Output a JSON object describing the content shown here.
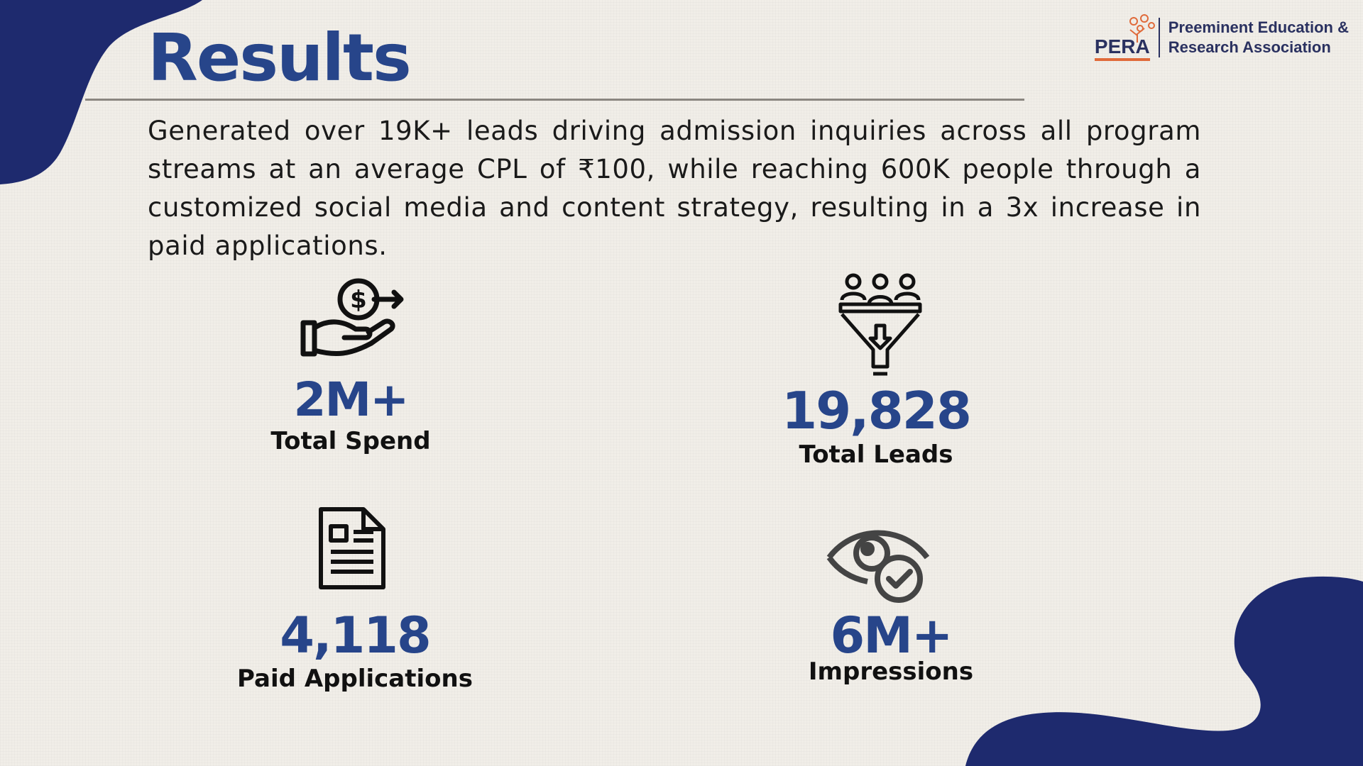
{
  "header": {
    "title": "Results",
    "logo": {
      "mark": "PERA",
      "line1": "Preeminent Education &",
      "line2": "Research Association"
    }
  },
  "summary": "Generated over 19K+ leads driving admission inquiries across all program streams at an average CPL of ₹100, while reaching 600K people through a customized social media and content strategy, resulting in a 3x increase in paid applications.",
  "stats": [
    {
      "value": "2M+",
      "label": "Total Spend",
      "icon": "hand-money-icon"
    },
    {
      "value": "19,828",
      "label": "Total Leads",
      "icon": "people-funnel-icon"
    },
    {
      "value": "4,118",
      "label": "Paid Applications",
      "icon": "document-icon"
    },
    {
      "value": "6M+",
      "label": "Impressions",
      "icon": "eye-check-icon"
    }
  ],
  "colors": {
    "navy": "#1e2a6e",
    "title_blue": "#27458a",
    "accent": "#e06a3a"
  }
}
